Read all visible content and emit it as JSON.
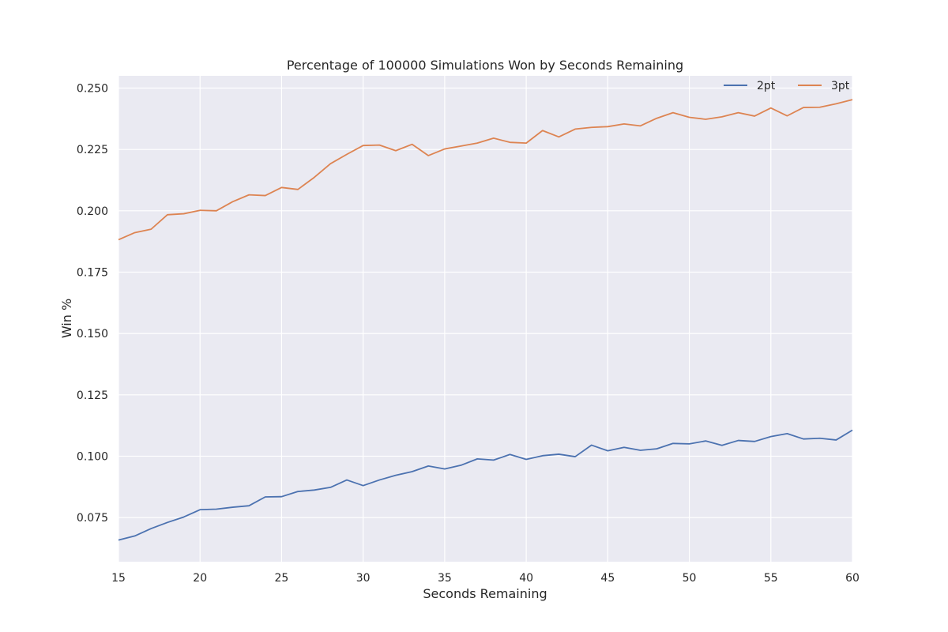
{
  "chart_data": {
    "type": "line",
    "title": "Percentage of 100000 Simulations Won by Seconds Remaining",
    "xlabel": "Seconds Remaining",
    "ylabel": "Win %",
    "xlim": [
      15,
      60
    ],
    "ylim": [
      0.057,
      0.255
    ],
    "xticks": [
      15,
      20,
      25,
      30,
      35,
      40,
      45,
      50,
      55,
      60
    ],
    "xtick_labels": [
      "15",
      "20",
      "25",
      "30",
      "35",
      "40",
      "45",
      "50",
      "55",
      "60"
    ],
    "yticks": [
      0.075,
      0.1,
      0.125,
      0.15,
      0.175,
      0.2,
      0.225,
      0.25
    ],
    "ytick_labels": [
      "0.075",
      "0.100",
      "0.125",
      "0.150",
      "0.175",
      "0.200",
      "0.225",
      "0.250"
    ],
    "grid": true,
    "legend_position": "top-right",
    "x": [
      15,
      16,
      17,
      18,
      19,
      20,
      21,
      22,
      23,
      24,
      25,
      26,
      27,
      28,
      29,
      30,
      31,
      32,
      33,
      34,
      35,
      36,
      37,
      38,
      39,
      40,
      41,
      42,
      43,
      44,
      45,
      46,
      47,
      48,
      49,
      50,
      51,
      52,
      53,
      54,
      55,
      56,
      57,
      58,
      59,
      60
    ],
    "series": [
      {
        "name": "2pt",
        "color": "#4c72b0",
        "values": [
          0.0658,
          0.0675,
          0.0705,
          0.073,
          0.0752,
          0.0782,
          0.0784,
          0.0792,
          0.0798,
          0.0834,
          0.0835,
          0.0856,
          0.0862,
          0.0873,
          0.0903,
          0.088,
          0.0903,
          0.0922,
          0.0937,
          0.096,
          0.0948,
          0.0963,
          0.0989,
          0.0984,
          0.1007,
          0.0987,
          0.1002,
          0.1008,
          0.0998,
          0.1045,
          0.1022,
          0.1036,
          0.1024,
          0.103,
          0.1052,
          0.105,
          0.1062,
          0.1044,
          0.1064,
          0.106,
          0.108,
          0.1092,
          0.107,
          0.1073,
          0.1066,
          0.1106
        ]
      },
      {
        "name": "3pt",
        "color": "#dd8452",
        "values": [
          0.1882,
          0.1911,
          0.1925,
          0.1984,
          0.1988,
          0.2002,
          0.2,
          0.2037,
          0.2065,
          0.2062,
          0.2095,
          0.2087,
          0.2136,
          0.2192,
          0.223,
          0.2266,
          0.2268,
          0.2245,
          0.2271,
          0.2225,
          0.2252,
          0.2264,
          0.2276,
          0.2296,
          0.2279,
          0.2276,
          0.2327,
          0.2301,
          0.2333,
          0.234,
          0.2343,
          0.2354,
          0.2346,
          0.2377,
          0.24,
          0.2381,
          0.2373,
          0.2383,
          0.24,
          0.2386,
          0.2419,
          0.2387,
          0.2421,
          0.2422,
          0.2436,
          0.2453
        ]
      }
    ]
  }
}
